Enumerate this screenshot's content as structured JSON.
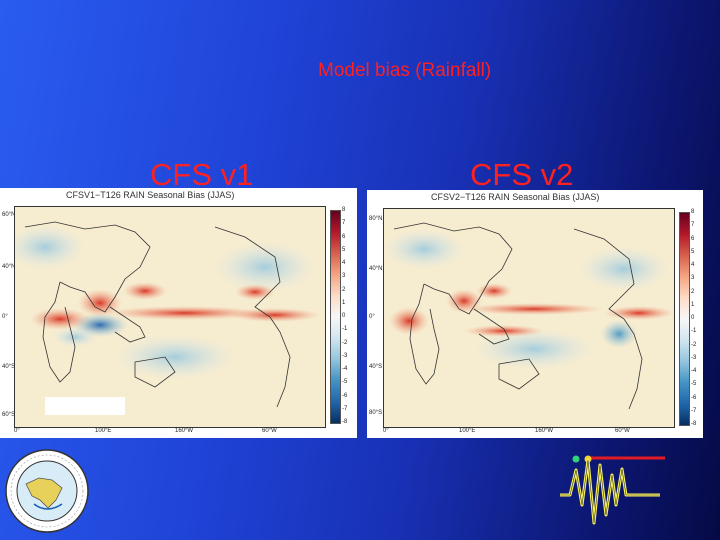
{
  "slide": {
    "title": "Model bias (Rainfall)",
    "left_label": "CFS v1",
    "right_label": "CFS v2"
  },
  "panels": {
    "left": {
      "title": "CFSV1−T126 RAIN Seasonal Bias (JJAS)",
      "lat_labels": [
        "60°N",
        "40°N",
        "0°",
        "40°S",
        "60°S"
      ],
      "lon_labels": [
        "0°",
        "100°E",
        "160°W",
        "60°W"
      ],
      "colorbar_labels": [
        "8",
        "7",
        "6",
        "5",
        "4",
        "3",
        "2",
        "1",
        "0",
        "-1",
        "-2",
        "-3",
        "-4",
        "-5",
        "-6",
        "-7",
        "-8"
      ]
    },
    "right": {
      "title": "CFSV2−T126 RAIN Seasonal Bias (JJAS)",
      "lat_labels": [
        "80°N",
        "40°N",
        "0°",
        "40°S",
        "80°S"
      ],
      "lon_labels": [
        "0°",
        "100°E",
        "160°W",
        "60°W"
      ],
      "colorbar_labels": [
        "8",
        "7",
        "6",
        "5",
        "4",
        "3",
        "2",
        "1",
        "0",
        "-1",
        "-2",
        "-3",
        "-4",
        "-5",
        "-6",
        "-7",
        "-8"
      ]
    }
  },
  "colors": {
    "title_red": "#ff2020",
    "positive_bias": "#d7301f",
    "negative_bias": "#2166ac",
    "neutral": "#f3e8c6"
  },
  "icons": {
    "logo": "emblem-logo-icon",
    "signal": "seismograph-icon"
  }
}
